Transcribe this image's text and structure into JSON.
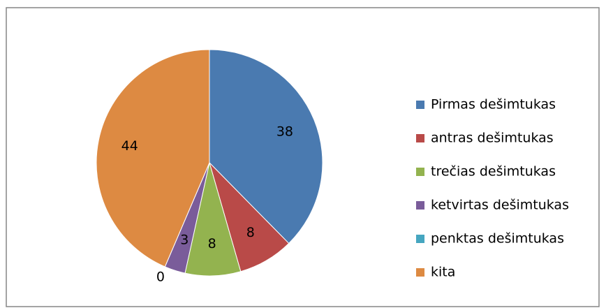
{
  "chart_data": {
    "type": "pie",
    "categories": [
      "Pirmas dešimtukas",
      "antras dešimtukas",
      "trečias dešimtukas",
      "ketvirtas dešimtukas",
      "penktas dešimtukas",
      "kita"
    ],
    "values": [
      38,
      8,
      8,
      3,
      0,
      44
    ],
    "colors": [
      "#4a7ab0",
      "#b94a48",
      "#93b34f",
      "#7a5c9a",
      "#46a6c0",
      "#dd8a42"
    ],
    "legend": "right"
  }
}
